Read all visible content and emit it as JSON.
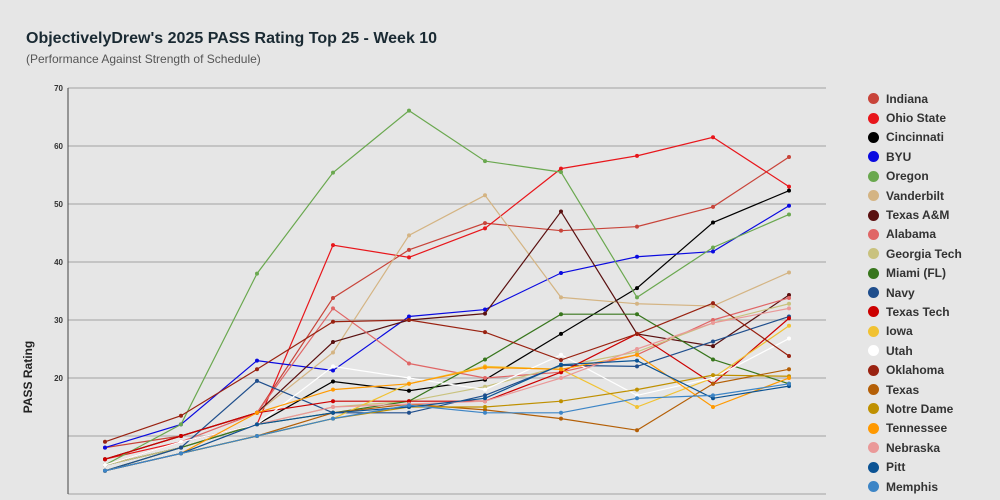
{
  "chart_data": {
    "type": "line",
    "title": "ObjectivelyDrew's 2025 PASS Rating Top 25 - Week 10",
    "subtitle": "(Performance Against Strength of Schedule)",
    "ylabel": "PASS Rating",
    "xlabel": "",
    "ylim": [
      0,
      70
    ],
    "yticks": [
      70,
      60,
      50,
      40,
      30,
      20
    ],
    "grid": true,
    "legend_position": "right",
    "x": [
      1,
      2,
      3,
      4,
      5,
      6,
      7,
      8,
      9,
      10
    ],
    "series": [
      {
        "name": "Indiana",
        "color": "#c8443a",
        "values": [
          8,
          10,
          14,
          33.8,
          42.1,
          46.7,
          45.4,
          46.1,
          49.5,
          58.1
        ]
      },
      {
        "name": "Ohio State",
        "color": "#e8161b",
        "values": [
          6,
          9,
          12,
          42.9,
          40.8,
          45.8,
          56.1,
          58.3,
          61.5,
          53.0
        ]
      },
      {
        "name": "Cincinnati",
        "color": "#000000",
        "values": [
          5,
          8,
          12,
          19.4,
          17.8,
          19.7,
          27.6,
          35.5,
          46.8,
          52.3
        ]
      },
      {
        "name": "BYU",
        "color": "#0a0ae0",
        "values": [
          8,
          12,
          23.0,
          21.3,
          30.6,
          31.8,
          38.1,
          40.9,
          41.8,
          49.7
        ]
      },
      {
        "name": "Oregon",
        "color": "#6aa84f",
        "values": [
          5,
          12,
          38.0,
          55.4,
          66.1,
          57.4,
          55.5,
          33.9,
          42.5,
          48.2
        ]
      },
      {
        "name": "Vanderbilt",
        "color": "#d4b483",
        "values": [
          6,
          10,
          14,
          24.4,
          44.6,
          51.5,
          33.9,
          32.8,
          32.4,
          38.2
        ]
      },
      {
        "name": "Texas A&M",
        "color": "#5a1010",
        "values": [
          6,
          10,
          14,
          26.2,
          30.0,
          31.1,
          48.7,
          27.6,
          25.5,
          34.3
        ]
      },
      {
        "name": "Alabama",
        "color": "#e06666",
        "values": [
          5,
          9,
          14,
          32.0,
          22.5,
          20.0,
          21.0,
          24.0,
          30.0,
          33.8
        ]
      },
      {
        "name": "Georgia Tech",
        "color": "#c9c27e",
        "values": [
          5,
          8,
          12,
          15,
          16,
          18.5,
          22,
          24.5,
          29.5,
          32.8
        ]
      },
      {
        "name": "Miami (FL)",
        "color": "#38761d",
        "values": [
          4,
          8,
          12,
          14,
          16,
          23.2,
          31.0,
          31.0,
          23.2,
          19.0
        ]
      },
      {
        "name": "Navy",
        "color": "#1f4e8c",
        "values": [
          4,
          8,
          19.5,
          14,
          14,
          17,
          22.2,
          22.0,
          26.3,
          30.6
        ]
      },
      {
        "name": "Texas Tech",
        "color": "#cc0000",
        "values": [
          6,
          10,
          14,
          16,
          16,
          16,
          21,
          27.6,
          19,
          30.3
        ]
      },
      {
        "name": "Iowa",
        "color": "#f1c232",
        "values": [
          4,
          7,
          10,
          13,
          19.0,
          22.0,
          21.5,
          15,
          20,
          29
        ]
      },
      {
        "name": "Utah",
        "color": "#ffffff",
        "values": [
          5,
          9,
          12,
          22,
          20,
          18,
          24,
          17,
          20,
          26.8
        ]
      },
      {
        "name": "Oklahoma",
        "color": "#992211",
        "values": [
          9,
          13.5,
          21.5,
          29.7,
          30.0,
          27.9,
          23.1,
          27.6,
          32.9,
          23.8
        ]
      },
      {
        "name": "Texas",
        "color": "#b45f06",
        "values": [
          4,
          7,
          10,
          14,
          15.5,
          14.5,
          13,
          11,
          19,
          21.5
        ]
      },
      {
        "name": "Notre Dame",
        "color": "#bf9000",
        "values": [
          4,
          7,
          10,
          13,
          15,
          15,
          16,
          18,
          20.5,
          20.3
        ]
      },
      {
        "name": "Tennessee",
        "color": "#ff9900",
        "values": [
          4,
          7,
          14,
          18,
          19,
          21.8,
          21.5,
          24,
          15,
          20
        ]
      },
      {
        "name": "Nebraska",
        "color": "#ea9999",
        "values": [
          4,
          7,
          12,
          15,
          15.5,
          16,
          20,
          25,
          29.5,
          32
        ]
      },
      {
        "name": "Pitt",
        "color": "#0b5394",
        "values": [
          4,
          7,
          12,
          14,
          15,
          16.5,
          22.3,
          23,
          16.5,
          18.6
        ]
      },
      {
        "name": "Memphis",
        "color": "#3d85c6",
        "values": [
          4,
          7,
          10,
          13,
          15.3,
          14,
          14,
          16.5,
          17,
          19
        ]
      }
    ]
  }
}
